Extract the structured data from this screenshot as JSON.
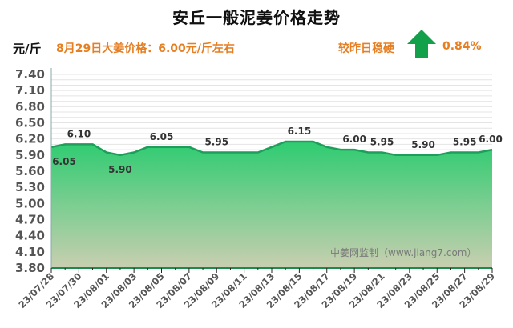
{
  "header": {
    "title": "安丘一般泥姜价格走势",
    "unit": "元/斤",
    "price_note": "8月29日大姜价格：6.00元/斤左右",
    "compare_label": "较昨日稳硬",
    "change_pct": "0.84%",
    "arrow_icon": "up-arrow-icon"
  },
  "colors": {
    "accent_orange": "#e67e22",
    "area_top": "#2ecc71",
    "area_bottom": "#c8cfb0",
    "line": "#1e9e5a",
    "arrow": "#12a14a"
  },
  "watermark": "中姜网监制（www.jiang7.com）",
  "chart_data": {
    "type": "area",
    "title": "安丘一般泥姜价格走势",
    "ylabel": "元/斤",
    "xlabel": "",
    "ylim": [
      3.8,
      7.4
    ],
    "yticks": [
      "7.40",
      "7.10",
      "6.80",
      "6.50",
      "6.20",
      "5.90",
      "5.60",
      "5.30",
      "5.00",
      "4.70",
      "4.40",
      "4.10",
      "3.80"
    ],
    "xtick_labels": [
      "23/07/28",
      "23/07/30",
      "23/08/01",
      "23/08/03",
      "23/08/05",
      "23/08/07",
      "23/08/09",
      "23/08/11",
      "23/08/13",
      "23/08/15",
      "23/08/17",
      "23/08/19",
      "23/08/21",
      "23/08/23",
      "23/08/25",
      "23/08/27",
      "23/08/29"
    ],
    "x": [
      "23/07/28",
      "23/07/29",
      "23/07/30",
      "23/07/31",
      "23/08/01",
      "23/08/02",
      "23/08/03",
      "23/08/04",
      "23/08/05",
      "23/08/06",
      "23/08/07",
      "23/08/08",
      "23/08/09",
      "23/08/10",
      "23/08/11",
      "23/08/12",
      "23/08/13",
      "23/08/14",
      "23/08/15",
      "23/08/16",
      "23/08/17",
      "23/08/18",
      "23/08/19",
      "23/08/20",
      "23/08/21",
      "23/08/22",
      "23/08/23",
      "23/08/24",
      "23/08/25",
      "23/08/26",
      "23/08/27",
      "23/08/28",
      "23/08/29"
    ],
    "values": [
      6.05,
      6.1,
      6.1,
      6.1,
      5.95,
      5.9,
      5.95,
      6.05,
      6.05,
      6.05,
      6.05,
      5.95,
      5.95,
      5.95,
      5.95,
      5.95,
      6.05,
      6.15,
      6.15,
      6.15,
      6.05,
      6.0,
      6.0,
      5.95,
      5.95,
      5.9,
      5.9,
      5.9,
      5.9,
      5.95,
      5.95,
      5.95,
      6.0
    ],
    "data_labels": [
      {
        "date": "23/07/28",
        "text": "6.05",
        "idx": 0,
        "pos": "below"
      },
      {
        "date": "23/07/30",
        "text": "6.10",
        "idx": 2,
        "pos": "above"
      },
      {
        "date": "23/08/02",
        "text": "5.90",
        "idx": 5,
        "pos": "below"
      },
      {
        "date": "23/08/05",
        "text": "6.05",
        "idx": 8,
        "pos": "above"
      },
      {
        "date": "23/08/09",
        "text": "5.95",
        "idx": 12,
        "pos": "above"
      },
      {
        "date": "23/08/15",
        "text": "6.15",
        "idx": 18,
        "pos": "above"
      },
      {
        "date": "23/08/19",
        "text": "6.00",
        "idx": 22,
        "pos": "above"
      },
      {
        "date": "23/08/21",
        "text": "5.95",
        "idx": 24,
        "pos": "above"
      },
      {
        "date": "23/08/24",
        "text": "5.90",
        "idx": 27,
        "pos": "above"
      },
      {
        "date": "23/08/27",
        "text": "5.95",
        "idx": 30,
        "pos": "above"
      },
      {
        "date": "23/08/29",
        "text": "6.00",
        "idx": 32,
        "pos": "above"
      }
    ],
    "grid": true,
    "legend": "none"
  }
}
